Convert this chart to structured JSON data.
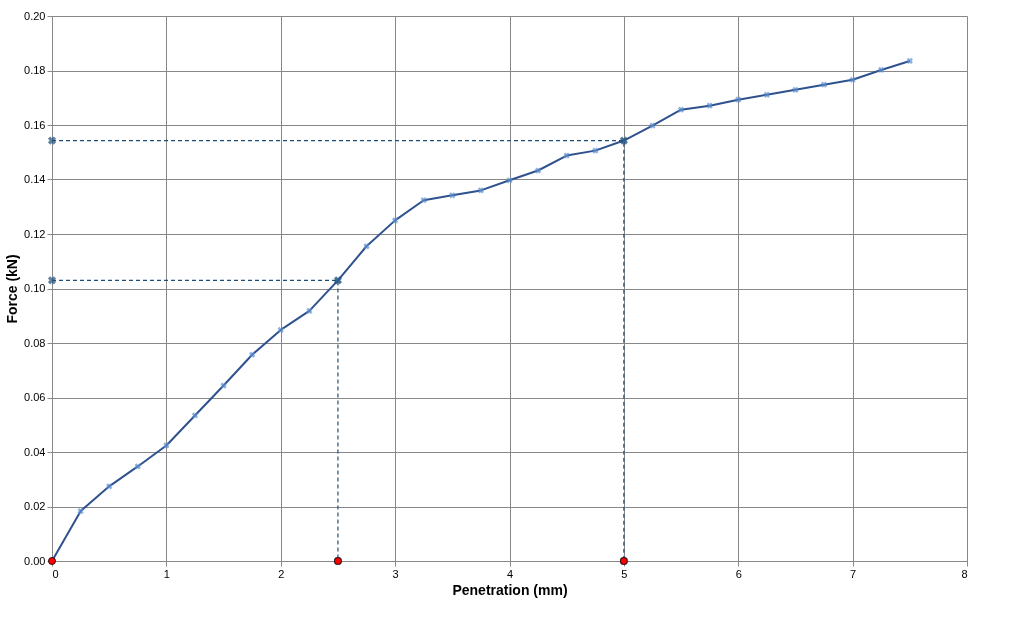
{
  "chart_data": {
    "type": "line",
    "xlabel": "Penetration  (mm)",
    "ylabel": "Force  (kN)",
    "xlim": [
      0,
      8
    ],
    "xticks": [
      0,
      1,
      2,
      3,
      4,
      5,
      6,
      7,
      8
    ],
    "ylim": [
      0,
      0.2
    ],
    "yticks": [
      {
        "value": 0,
        "label": "0.00"
      },
      {
        "value": 0.02,
        "label": "0.02"
      },
      {
        "value": 0.04,
        "label": "0.04"
      },
      {
        "value": 0.06,
        "label": "0.06"
      },
      {
        "value": 0.08,
        "label": "0.08"
      },
      {
        "value": 0.1,
        "label": "0.10"
      },
      {
        "value": 0.12,
        "label": "0.12"
      },
      {
        "value": 0.14,
        "label": "0.14"
      },
      {
        "value": 0.16,
        "label": "0.16"
      },
      {
        "value": 0.18,
        "label": "0.18"
      },
      {
        "value": 0.2,
        "label": "0.20"
      }
    ],
    "grid": true,
    "series": [
      {
        "color": "#2f528f",
        "marker": "cross",
        "line_style": "solid",
        "x": [
          0,
          0.25,
          0.5,
          0.75,
          1,
          1.25,
          1.5,
          1.75,
          2,
          2.25,
          2.5,
          2.75,
          3,
          3.25,
          3.5,
          3.75,
          4,
          4.25,
          4.5,
          4.75,
          5,
          5.25,
          5.5,
          5.75,
          6,
          6.25,
          6.5,
          6.75,
          7,
          7.25,
          7.5
        ],
        "values": [
          0,
          0.0183,
          0.0274,
          0.0347,
          0.0424,
          0.0534,
          0.0644,
          0.0757,
          0.0848,
          0.0918,
          0.103,
          0.1155,
          0.125,
          0.1324,
          0.1342,
          0.136,
          0.1397,
          0.1433,
          0.1488,
          0.1506,
          0.1543,
          0.1598,
          0.1656,
          0.1671,
          0.1693,
          0.1711,
          0.1729,
          0.1748,
          0.1766,
          0.1802,
          0.1835
        ]
      },
      {
        "type": "line",
        "color": "#1f4e79",
        "marker": "cross",
        "line_style": "dashed",
        "x": [
          0,
          2.5,
          2.5
        ],
        "values": [
          0.103,
          0.103,
          0
        ]
      },
      {
        "type": "line",
        "color": "#1f4e79",
        "marker": "cross",
        "line_style": "dashed",
        "x": [
          0,
          5,
          5
        ],
        "values": [
          0.1543,
          0.1543,
          0
        ]
      },
      {
        "type": "scatter",
        "color": "#ff0000",
        "marker": "circle",
        "x": [
          0,
          2.5,
          5
        ],
        "values": [
          0,
          0,
          0
        ]
      }
    ]
  }
}
